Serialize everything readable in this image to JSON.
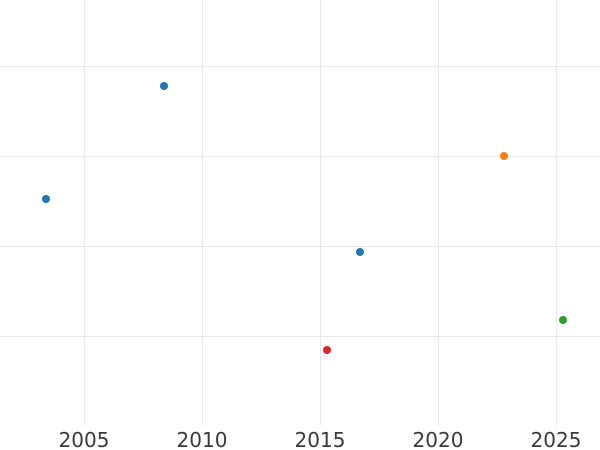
{
  "colors": {
    "background": "#ffffff",
    "gridline": "#e8e8e8",
    "tick_label": "#3a3a3a",
    "series_blue": "#1f77b4",
    "series_orange": "#ff7f0e",
    "series_green": "#2ca02c",
    "series_red": "#d62728"
  },
  "chart_data": {
    "type": "scatter",
    "title": "",
    "xlabel": "",
    "ylabel": "",
    "grid": true,
    "legend": false,
    "x_tick_labels": [
      "2005",
      "2010",
      "2015",
      "2020",
      "2025"
    ],
    "x_ticks": [
      2005,
      2010,
      2015,
      2020,
      2025
    ],
    "x_range": [
      2001.4,
      2026.9
    ],
    "y_tick_labels_visible": false,
    "y_gridline_units": [
      1,
      2,
      3,
      4
    ],
    "y_range_units": [
      0,
      4.73
    ],
    "note": "y-axis tick labels are outside the visible crop; y values expressed in gridline units above the plot bottom edge",
    "series": [
      {
        "name": "blue",
        "color": "#1f77b4",
        "points": [
          {
            "x": 2003.4,
            "y": 2.52
          },
          {
            "x": 2008.4,
            "y": 3.78
          },
          {
            "x": 2016.7,
            "y": 1.93
          }
        ]
      },
      {
        "name": "orange",
        "color": "#ff7f0e",
        "points": [
          {
            "x": 2022.8,
            "y": 3.0
          }
        ]
      },
      {
        "name": "red",
        "color": "#d62728",
        "points": [
          {
            "x": 2015.3,
            "y": 0.84
          }
        ]
      },
      {
        "name": "green",
        "color": "#2ca02c",
        "points": [
          {
            "x": 2025.3,
            "y": 1.18
          }
        ]
      }
    ]
  }
}
